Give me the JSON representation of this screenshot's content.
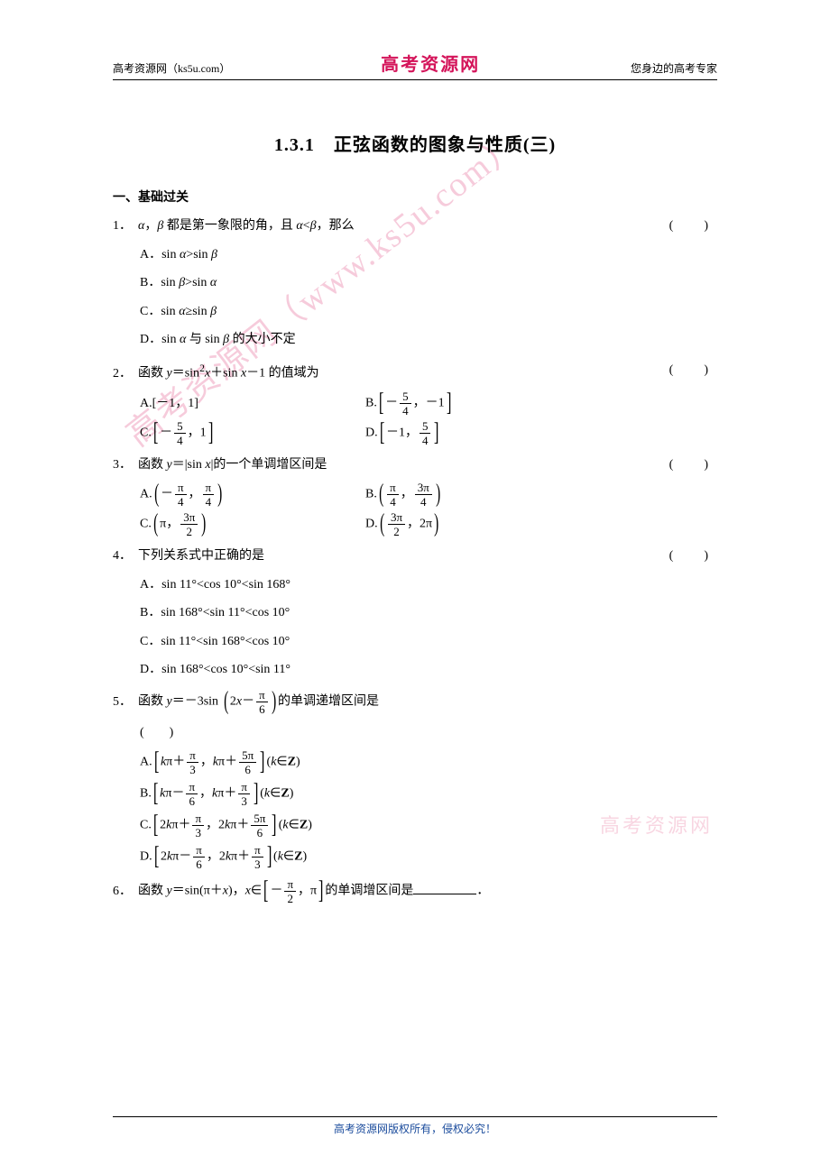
{
  "header": {
    "left": "高考资源网（ks5u.com）",
    "center": "高考资源网",
    "right": "您身边的高考专家"
  },
  "title": "1.3.1　正弦函数的图象与性质(三)",
  "section_heading": "一、基础过关",
  "watermark_diag": "高考资源网（www.ks5u.com）",
  "watermark_side": "高考资源网",
  "footer": "高考资源网版权所有，侵权必究！",
  "colors": {
    "red": "#d4145a",
    "blue": "#1a4b9c",
    "text": "#000000",
    "background": "#ffffff",
    "watermark": "rgba(214,20,90,0.22)"
  },
  "questions": {
    "q1": {
      "num": "1．",
      "text": "若 α，β 都是第一象限的角，且 α<β，那么",
      "optA": "A．sin α>sin β",
      "optB": "B．sin β>sin α",
      "optC": "C．sin α≥sin β",
      "optD": "D．sin α 与 sin β 的大小不定"
    },
    "q2": {
      "num": "2．",
      "text_pre": "函数 ",
      "text_post": " 的值域为",
      "optA": "A.[－1，1]",
      "optB_pre": "B.",
      "optC_pre": "C.",
      "optD_pre": "D."
    },
    "q3": {
      "num": "3．",
      "text_pre": "函数 ",
      "text_mid": "y＝|sin x|",
      "text_post": "的一个单调增区间是",
      "optA_pre": "A.",
      "optB_pre": "B.",
      "optC_pre": "C.",
      "optD_pre": "D."
    },
    "q4": {
      "num": "4．",
      "text": "下列关系式中正确的是",
      "optA": "A．sin 11°<cos 10°<sin 168°",
      "optB": "B．sin 168°<sin 11°<cos 10°",
      "optC": "C．sin 11°<sin 168°<cos 10°",
      "optD": "D．sin 168°<cos 10°<sin 11°"
    },
    "q5": {
      "num": "5．",
      "text_pre": "函数 ",
      "text_post": "的单调递增区间是",
      "optA_pre": "A.",
      "optB_pre": "B.",
      "optC_pre": "C.",
      "optD_pre": "D.",
      "opt_tail": "(k∈Z)"
    },
    "q6": {
      "num": "6．",
      "text_pre": "函数 y＝sin(π＋x)，x∈",
      "text_post": "的单调增区间是",
      "text_end": "．"
    }
  }
}
